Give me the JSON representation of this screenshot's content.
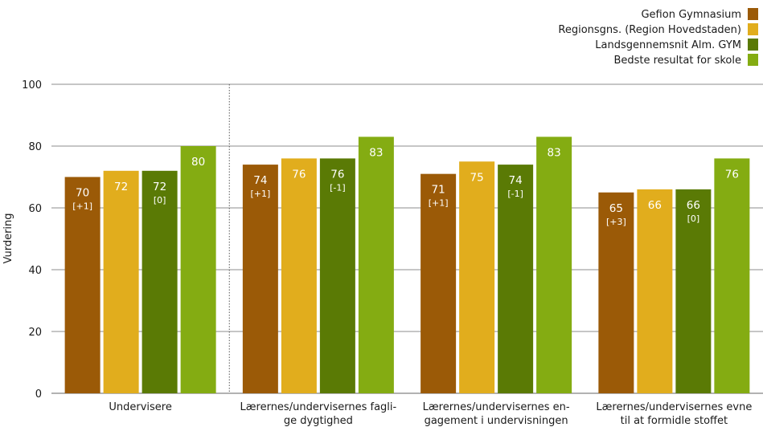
{
  "chart_data": {
    "type": "bar",
    "ylabel": "Vurdering",
    "ylim": [
      0,
      100
    ],
    "yticks": [
      0,
      20,
      40,
      60,
      80,
      100
    ],
    "grid": true,
    "legend_position": "top-right",
    "categories": [
      [
        "Undervisere"
      ],
      [
        "Lærernes/undervisernes fagli-",
        "ge dygtighed"
      ],
      [
        "Lærernes/undervisernes en-",
        "gagement i undervisningen"
      ],
      [
        "Lærernes/undervisernes evne",
        "til at formidle stoffet"
      ]
    ],
    "series": [
      {
        "name": "Gefion Gymnasium",
        "color": "#9b5a07",
        "values": [
          70,
          74,
          71,
          65
        ],
        "value_labels": [
          "70",
          "74",
          "71",
          "65"
        ],
        "diff_labels": [
          "[+1]",
          "[+1]",
          "[+1]",
          "[+3]"
        ]
      },
      {
        "name": "Regionsgns. (Region Hovedstaden)",
        "color": "#e1ad1d",
        "values": [
          72,
          76,
          75,
          66
        ],
        "value_labels": [
          "72",
          "76",
          "75",
          "66"
        ],
        "diff_labels": [
          "",
          "",
          "",
          ""
        ]
      },
      {
        "name": "Landsgennemsnit Alm. GYM",
        "color": "#5a7a05",
        "values": [
          72,
          76,
          74,
          66
        ],
        "value_labels": [
          "72",
          "76",
          "74",
          "66"
        ],
        "diff_labels": [
          "[0]",
          "[-1]",
          "[-1]",
          "[0]"
        ]
      },
      {
        "name": "Bedste resultat for skole",
        "color": "#84ac12",
        "values": [
          80,
          83,
          83,
          76
        ],
        "value_labels": [
          "80",
          "83",
          "83",
          "76"
        ],
        "diff_labels": [
          "",
          "",
          "",
          ""
        ]
      }
    ]
  }
}
